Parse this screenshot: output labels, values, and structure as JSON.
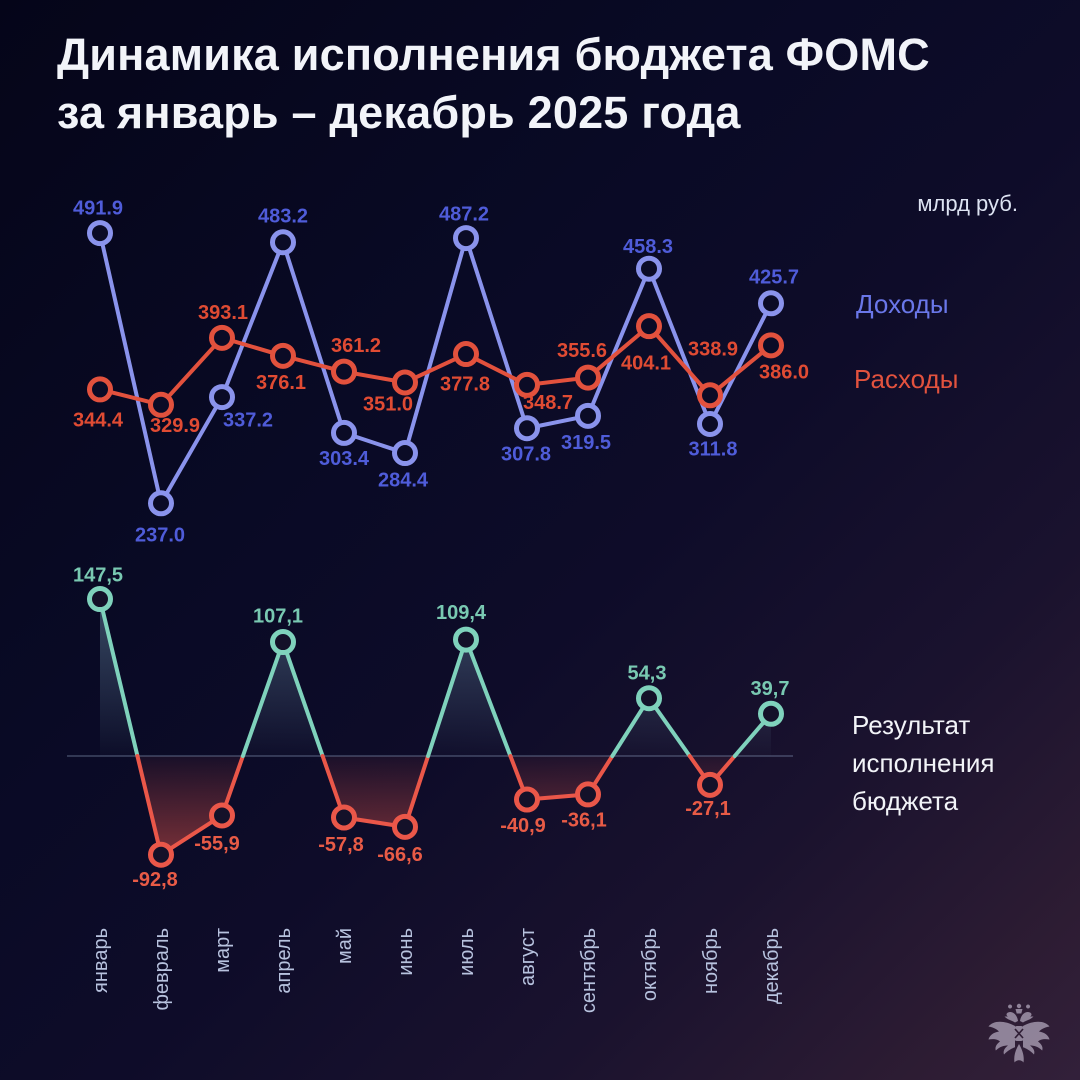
{
  "title": {
    "line1": "Динамика исполнения бюджета ФОМС",
    "line2": "за январь – декабрь 2025 года"
  },
  "unit_label": "млрд руб.",
  "legend": {
    "income": "Доходы",
    "expenses": "Расходы",
    "result": "Результат исполнения бюджета"
  },
  "colors": {
    "income_line": "#8a93ec",
    "income_label": "#4f5cd9",
    "expenses_line": "#e2513d",
    "expenses_label": "#e04b33",
    "result_positive": "#7fd2bc",
    "result_positive_label": "#79c9b2",
    "result_negative": "#ea5749",
    "result_negative_label": "#e85b46",
    "zero_line": "#7f8fae",
    "month_label": "#b7c2de",
    "background_top": "#050519",
    "background_bottom": "#32203a"
  },
  "chart_data": [
    {
      "type": "line",
      "title": "Доходы и расходы ФОМС, млрд руб.",
      "categories": [
        "январь",
        "февраль",
        "март",
        "апрель",
        "май",
        "июнь",
        "июль",
        "август",
        "сентябрь",
        "октябрь",
        "ноябрь",
        "декабрь"
      ],
      "series": [
        {
          "name": "Доходы",
          "values": [
            491.9,
            237.0,
            337.2,
            483.2,
            303.4,
            284.4,
            487.2,
            307.8,
            319.5,
            458.3,
            311.8,
            425.7
          ],
          "labels": [
            "491.9",
            "237.0",
            "337.2",
            "483.2",
            "303.4",
            "284.4",
            "487.2",
            "307.8",
            "319.5",
            "458.3",
            "311.8",
            "425.7"
          ]
        },
        {
          "name": "Расходы",
          "values": [
            344.4,
            329.9,
            393.1,
            376.1,
            361.2,
            351.0,
            377.8,
            348.7,
            355.6,
            404.1,
            338.9,
            386.0
          ],
          "labels": [
            "344.4",
            "329.9",
            "393.1",
            "376.1",
            "361.2",
            "351.0",
            "377.8",
            "348.7",
            "355.6",
            "404.1",
            "338.9",
            "386.0"
          ]
        }
      ],
      "ylim": [
        230,
        500
      ],
      "grid": false,
      "legend_position": "right"
    },
    {
      "type": "line",
      "title": "Результат исполнения бюджета, млрд руб.",
      "categories": [
        "январь",
        "февраль",
        "март",
        "апрель",
        "май",
        "июнь",
        "июль",
        "август",
        "сентябрь",
        "октябрь",
        "ноябрь",
        "декабрь"
      ],
      "series": [
        {
          "name": "Результат исполнения бюджета",
          "values": [
            147.5,
            -92.8,
            -55.9,
            107.1,
            -57.8,
            -66.6,
            109.4,
            -40.9,
            -36.1,
            54.3,
            -27.1,
            39.7
          ],
          "labels": [
            "147,5",
            "-92,8",
            "-55,9",
            "107,1",
            "-57,8",
            "-66,6",
            "109,4",
            "-40,9",
            "-36,1",
            "54,3",
            "-27,1",
            "39,7"
          ]
        }
      ],
      "ylim": [
        -100,
        150
      ],
      "zero_line": true,
      "grid": false,
      "legend_position": "right"
    }
  ]
}
